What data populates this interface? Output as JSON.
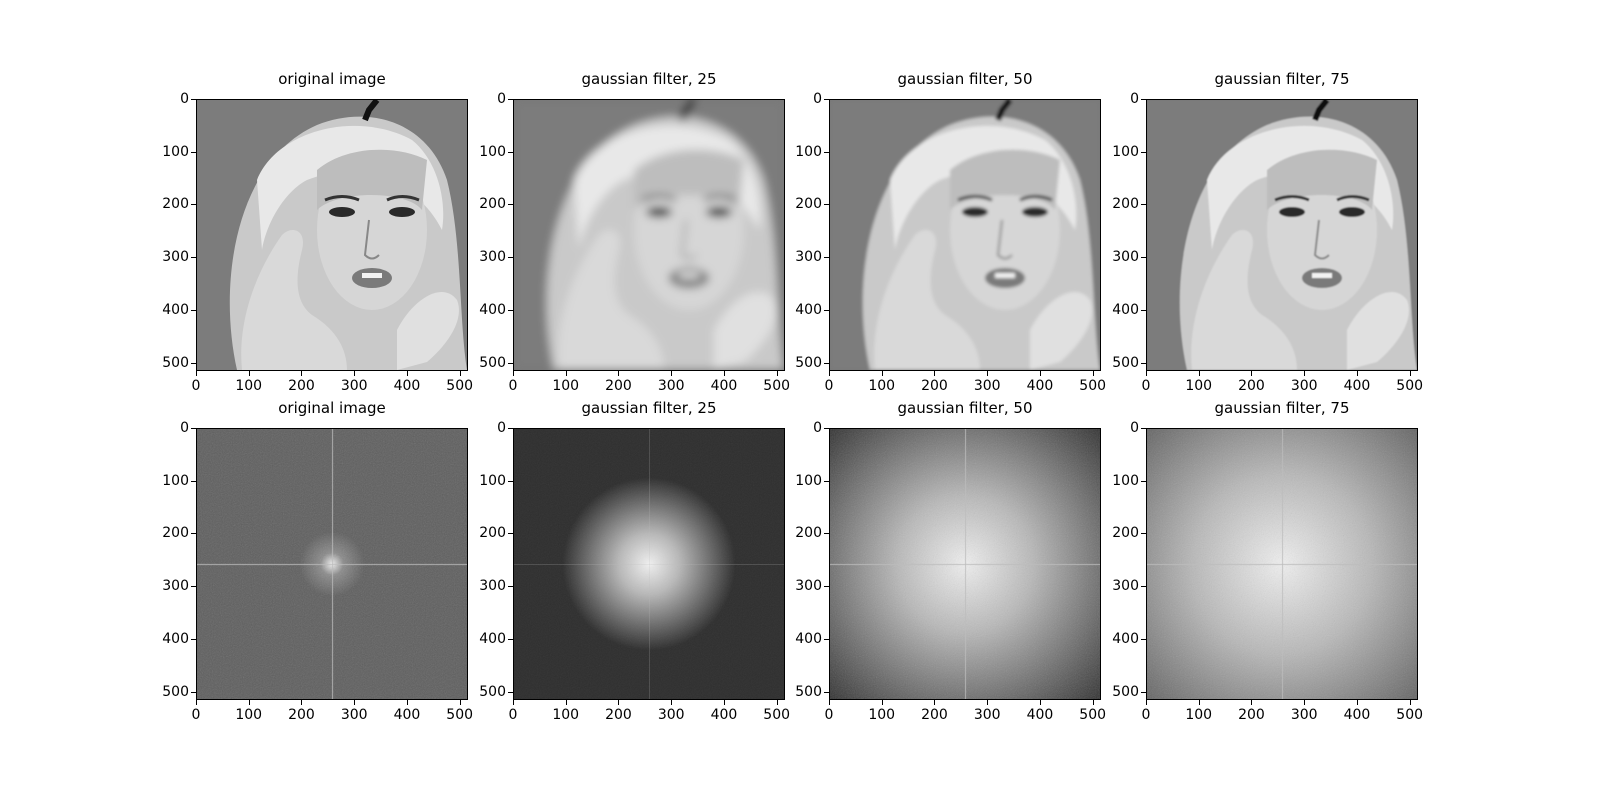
{
  "figure": {
    "panels": [
      {
        "title": "original image",
        "kind": "portrait",
        "blur": 0
      },
      {
        "title": "gaussian filter, 25",
        "kind": "portrait",
        "blur": 25
      },
      {
        "title": "gaussian filter, 50",
        "kind": "portrait",
        "blur": 50
      },
      {
        "title": "gaussian filter, 75",
        "kind": "portrait",
        "blur": 75
      },
      {
        "title": "original image",
        "kind": "spectrum",
        "blur": 0
      },
      {
        "title": "gaussian filter, 25",
        "kind": "spectrum",
        "blur": 25
      },
      {
        "title": "gaussian filter, 50",
        "kind": "spectrum",
        "blur": 50
      },
      {
        "title": "gaussian filter, 75",
        "kind": "spectrum",
        "blur": 75
      }
    ],
    "x_ticks": [
      "0",
      "100",
      "200",
      "300",
      "400",
      "500"
    ],
    "y_ticks": [
      "0",
      "100",
      "200",
      "300",
      "400",
      "500"
    ],
    "axis_extent": [
      0,
      512
    ],
    "colormap": "gray"
  }
}
